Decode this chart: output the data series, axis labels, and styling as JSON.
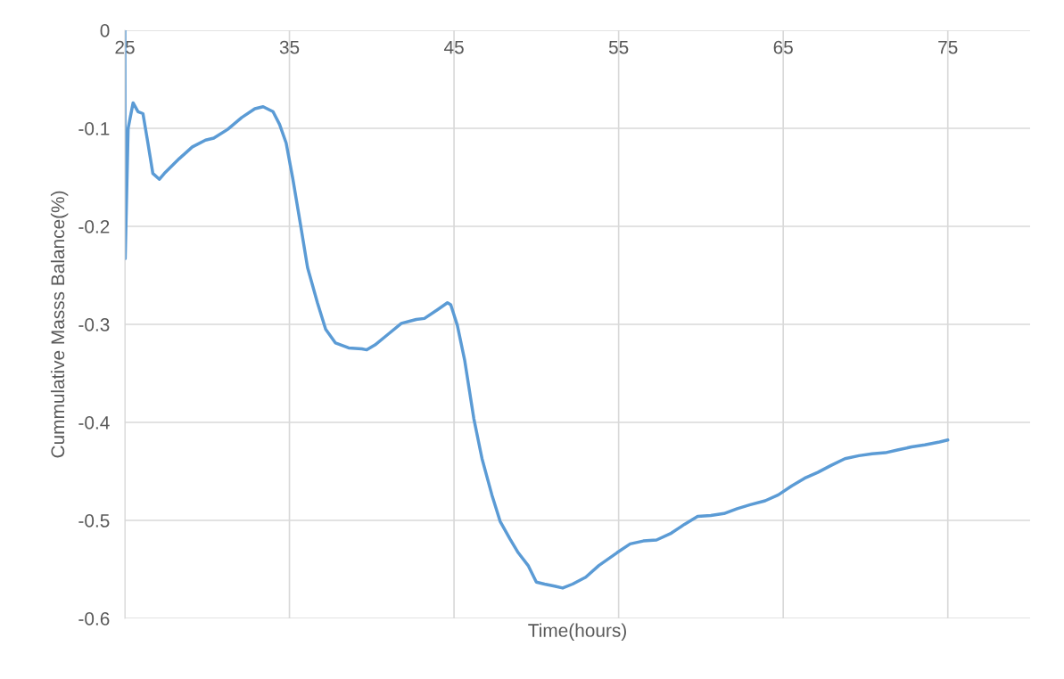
{
  "chart_data": {
    "type": "line",
    "xlabel": "Time(hours)",
    "ylabel": "Cummulative Masss Balance(%)",
    "xlim": [
      25,
      80
    ],
    "xticks": [
      25,
      35,
      45,
      55,
      65,
      75
    ],
    "ylim": [
      -0.6,
      0
    ],
    "yticks": [
      -0.6,
      -0.5,
      -0.4,
      -0.3,
      -0.2,
      -0.1,
      0
    ],
    "grid": true,
    "series": [
      {
        "color": "#5b9bd5",
        "x": [
          25,
          25.02,
          25.2,
          25.5,
          25.8,
          26.1,
          26.4,
          26.7,
          27.1,
          27.4,
          28.3,
          29.1,
          29.9,
          30.4,
          31.25,
          32.1,
          32.9,
          33.4,
          34.0,
          34.4,
          34.8,
          35.2,
          35.65,
          36.1,
          36.7,
          37.2,
          37.8,
          38.6,
          39.4,
          39.7,
          40.2,
          41.0,
          41.8,
          42.7,
          43.2,
          44.0,
          44.6,
          44.8,
          45.2,
          45.65,
          46.2,
          46.7,
          47.3,
          47.8,
          48.4,
          48.9,
          49.5,
          50.0,
          50.5,
          51.1,
          51.6,
          52.2,
          53.0,
          53.8,
          54.9,
          55.7,
          56.5,
          57.3,
          58.2,
          59.0,
          59.8,
          60.6,
          61.4,
          62.2,
          63.0,
          63.9,
          64.7,
          65.5,
          66.3,
          67.1,
          67.9,
          68.75,
          69.6,
          70.4,
          71.2,
          72.0,
          72.8,
          73.6,
          74.5,
          75.0
        ],
        "values": [
          0,
          -0.233,
          -0.1,
          -0.074,
          -0.083,
          -0.085,
          -0.115,
          -0.146,
          -0.152,
          -0.146,
          -0.131,
          -0.119,
          -0.112,
          -0.11,
          -0.101,
          -0.089,
          -0.08,
          -0.078,
          -0.083,
          -0.096,
          -0.115,
          -0.151,
          -0.196,
          -0.242,
          -0.278,
          -0.305,
          -0.319,
          -0.324,
          -0.325,
          -0.326,
          -0.321,
          -0.31,
          -0.299,
          -0.295,
          -0.294,
          -0.285,
          -0.278,
          -0.28,
          -0.301,
          -0.337,
          -0.396,
          -0.437,
          -0.474,
          -0.501,
          -0.519,
          -0.533,
          -0.546,
          -0.563,
          -0.565,
          -0.567,
          -0.569,
          -0.565,
          -0.558,
          -0.546,
          -0.533,
          -0.524,
          -0.521,
          -0.52,
          -0.513,
          -0.504,
          -0.496,
          -0.495,
          -0.493,
          -0.488,
          -0.484,
          -0.48,
          -0.474,
          -0.465,
          -0.457,
          -0.451,
          -0.444,
          -0.437,
          -0.434,
          -0.432,
          -0.431,
          -0.428,
          -0.425,
          -0.423,
          -0.42,
          -0.418
        ]
      }
    ]
  }
}
